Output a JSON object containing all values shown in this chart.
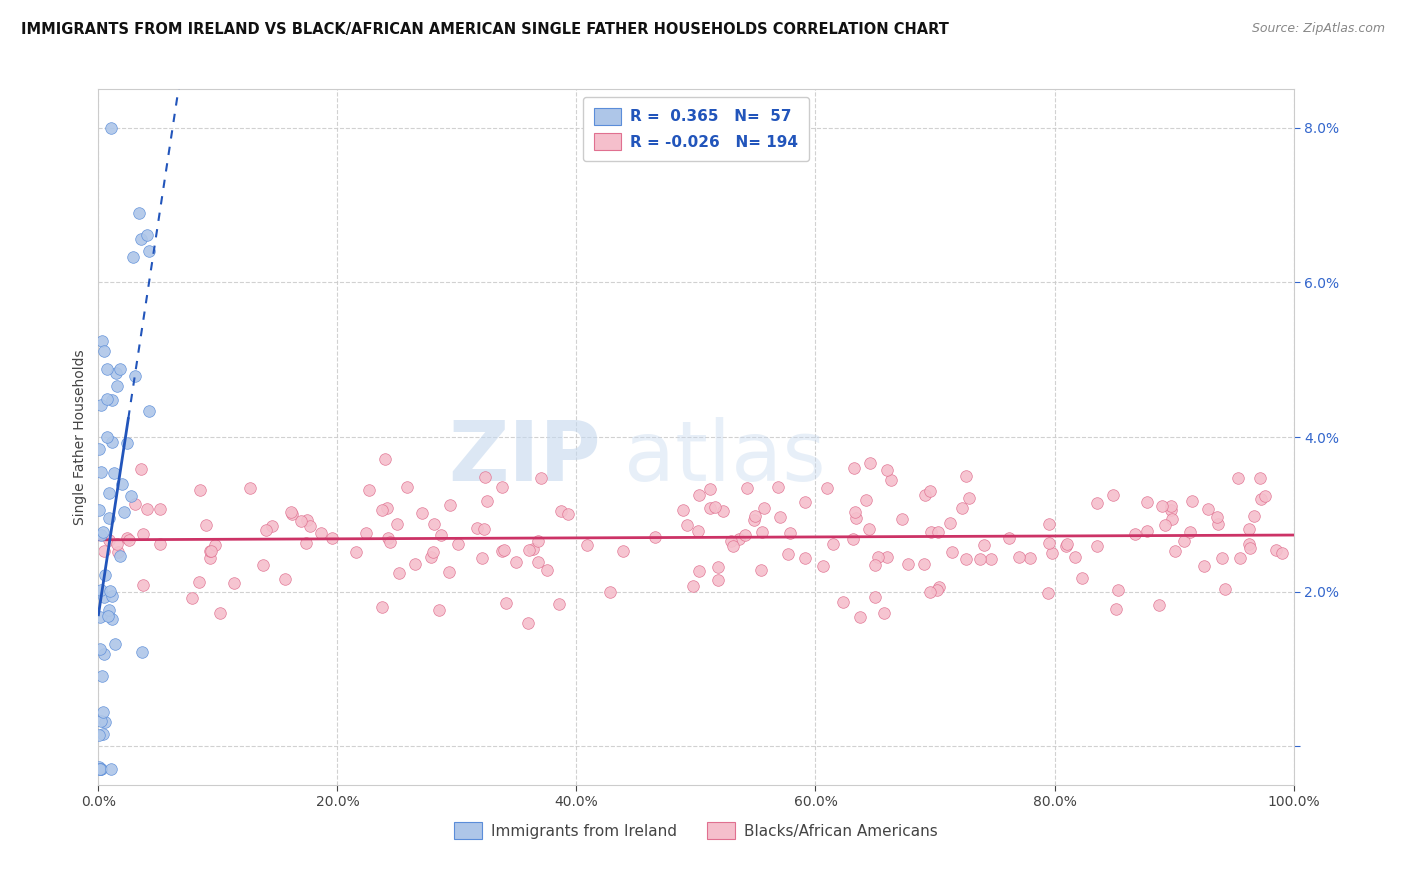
{
  "title": "IMMIGRANTS FROM IRELAND VS BLACK/AFRICAN AMERICAN SINGLE FATHER HOUSEHOLDS CORRELATION CHART",
  "source": "Source: ZipAtlas.com",
  "ylabel": "Single Father Households",
  "legend_blue_R": "0.365",
  "legend_blue_N": "57",
  "legend_pink_R": "-0.026",
  "legend_pink_N": "194",
  "legend_blue_label": "Immigrants from Ireland",
  "legend_pink_label": "Blacks/African Americans",
  "xlim": [
    0.0,
    100.0
  ],
  "ylim": [
    -0.5,
    8.5
  ],
  "yticks": [
    0.0,
    2.0,
    4.0,
    6.0,
    8.0
  ],
  "ytick_labels": [
    "",
    "2.0%",
    "4.0%",
    "6.0%",
    "8.0%"
  ],
  "xticks": [
    0.0,
    20.0,
    40.0,
    60.0,
    80.0,
    100.0
  ],
  "xtick_labels": [
    "0.0%",
    "20.0%",
    "40.0%",
    "60.0%",
    "80.0%",
    "100.0%"
  ],
  "blue_color": "#aec6e8",
  "blue_edge_color": "#5b8dd9",
  "blue_line_color": "#2255bb",
  "pink_color": "#f5bfcc",
  "pink_edge_color": "#e07090",
  "pink_line_color": "#cc3366",
  "bg_color": "#ffffff",
  "grid_color": "#cccccc",
  "blue_R": 0.365,
  "pink_R": -0.026,
  "blue_N": 57,
  "pink_N": 194
}
